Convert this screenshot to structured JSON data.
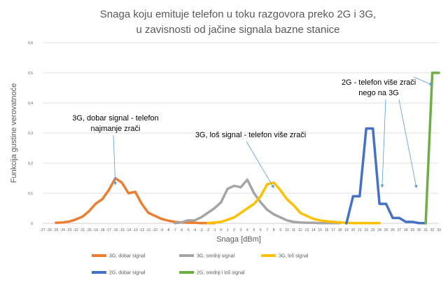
{
  "chart_data": {
    "type": "line",
    "title_lines": [
      "Snaga koju emituje telefon u toku razgovora preko 2G i 3G,",
      "u zavisnosti od jačine signala bazne stanice"
    ],
    "xlabel": "Snaga [dBm]",
    "ylabel": "Funkcija gustine verovatnoće",
    "categories": [
      "-27",
      "-26",
      "-25",
      "-24",
      "-23",
      "-22",
      "-21",
      "-20",
      "-19",
      "-18",
      "-17",
      "-16",
      "-15",
      "-14",
      "-13",
      "-12",
      "-11",
      "-10",
      "-9",
      "-8",
      "-7",
      "-6",
      "-5",
      "-4",
      "-3",
      "-2",
      "-1",
      "0",
      "1",
      "2",
      "3",
      "4",
      "5",
      "6",
      "7",
      "8",
      "9",
      "10",
      "11",
      "12",
      "13",
      "14",
      "15",
      "16",
      "17",
      "18",
      "19",
      "20",
      "21",
      "22",
      "23",
      "24",
      "25",
      "26",
      "27",
      "28",
      "29",
      "30",
      "31",
      "32",
      "33"
    ],
    "yticks": [
      "0",
      "0,1",
      "0,2",
      "0,3",
      "0,4",
      "0,5",
      "0,6"
    ],
    "ylim": [
      0,
      0.6
    ],
    "grid": true,
    "legend_position": "bottom",
    "series": [
      {
        "name": "3G, dobar signal",
        "color": "#ED7D31",
        "points": [
          [
            -25,
            0.002
          ],
          [
            -24,
            0.003
          ],
          [
            -23,
            0.006
          ],
          [
            -22,
            0.013
          ],
          [
            -21,
            0.022
          ],
          [
            -20,
            0.04
          ],
          [
            -19,
            0.065
          ],
          [
            -18,
            0.08
          ],
          [
            -17,
            0.11
          ],
          [
            -16,
            0.15
          ],
          [
            -15,
            0.135
          ],
          [
            -14,
            0.1
          ],
          [
            -13,
            0.105
          ],
          [
            -12,
            0.065
          ],
          [
            -11,
            0.035
          ],
          [
            -10,
            0.025
          ],
          [
            -9,
            0.015
          ],
          [
            -8,
            0.009
          ],
          [
            -7,
            0.005
          ],
          [
            -6,
            0.003
          ],
          [
            -5,
            0.002
          ],
          [
            -4,
            0.002
          ],
          [
            -3,
            0.001
          ],
          [
            -2,
            0.001
          ],
          [
            -1,
            0.001
          ]
        ]
      },
      {
        "name": "3G, srednji signal",
        "color": "#A5A5A5",
        "points": [
          [
            -7,
            0.001
          ],
          [
            -6,
            0.003
          ],
          [
            -5,
            0.01
          ],
          [
            -4,
            0.01
          ],
          [
            -3,
            0.02
          ],
          [
            -2,
            0.035
          ],
          [
            -1,
            0.05
          ],
          [
            0,
            0.07
          ],
          [
            1,
            0.115
          ],
          [
            2,
            0.125
          ],
          [
            3,
            0.12
          ],
          [
            4,
            0.145
          ],
          [
            5,
            0.1
          ],
          [
            6,
            0.07
          ],
          [
            7,
            0.045
          ],
          [
            8,
            0.03
          ],
          [
            9,
            0.02
          ],
          [
            10,
            0.01
          ],
          [
            11,
            0.005
          ],
          [
            12,
            0.003
          ],
          [
            13,
            0.002
          ],
          [
            14,
            0.002
          ],
          [
            15,
            0.001
          ],
          [
            16,
            0.001
          ],
          [
            17,
            0.001
          ],
          [
            18,
            0.001
          ]
        ]
      },
      {
        "name": "3G, loš signal",
        "color": "#FFC000",
        "points": [
          [
            -2,
            0.001
          ],
          [
            -1,
            0.003
          ],
          [
            0,
            0.005
          ],
          [
            1,
            0.012
          ],
          [
            2,
            0.02
          ],
          [
            3,
            0.035
          ],
          [
            4,
            0.05
          ],
          [
            5,
            0.065
          ],
          [
            6,
            0.09
          ],
          [
            7,
            0.13
          ],
          [
            8,
            0.135
          ],
          [
            9,
            0.11
          ],
          [
            10,
            0.08
          ],
          [
            11,
            0.06
          ],
          [
            12,
            0.035
          ],
          [
            13,
            0.025
          ],
          [
            14,
            0.015
          ],
          [
            15,
            0.01
          ],
          [
            16,
            0.007
          ],
          [
            17,
            0.005
          ],
          [
            18,
            0.003
          ],
          [
            19,
            0.002
          ],
          [
            20,
            0.001
          ],
          [
            21,
            0.001
          ],
          [
            22,
            0.001
          ],
          [
            23,
            0.001
          ],
          [
            24,
            0.001
          ]
        ]
      },
      {
        "name": "2G, dobar signal",
        "color": "#4472C4",
        "points": [
          [
            19,
            0.0
          ],
          [
            20,
            0.09
          ],
          [
            21,
            0.09
          ],
          [
            22,
            0.315
          ],
          [
            23,
            0.315
          ],
          [
            24,
            0.065
          ],
          [
            25,
            0.065
          ],
          [
            26,
            0.018
          ],
          [
            27,
            0.018
          ],
          [
            28,
            0.005
          ],
          [
            29,
            0.005
          ],
          [
            30,
            0.001
          ],
          [
            31,
            0.001
          ]
        ]
      },
      {
        "name": "2G, srednji i loš signal",
        "color": "#70AD47",
        "points": [
          [
            31,
            0.0
          ],
          [
            32,
            0.5
          ],
          [
            33,
            0.5
          ]
        ]
      }
    ],
    "annotations": [
      {
        "lines": [
          "3G, dobar signal - telefon",
          "najmanje zrači"
        ]
      },
      {
        "lines": [
          "3G, loš signal - telefon više zrači"
        ]
      },
      {
        "lines": [
          "2G - telefon više zrači",
          "nego na 3G"
        ]
      }
    ]
  }
}
